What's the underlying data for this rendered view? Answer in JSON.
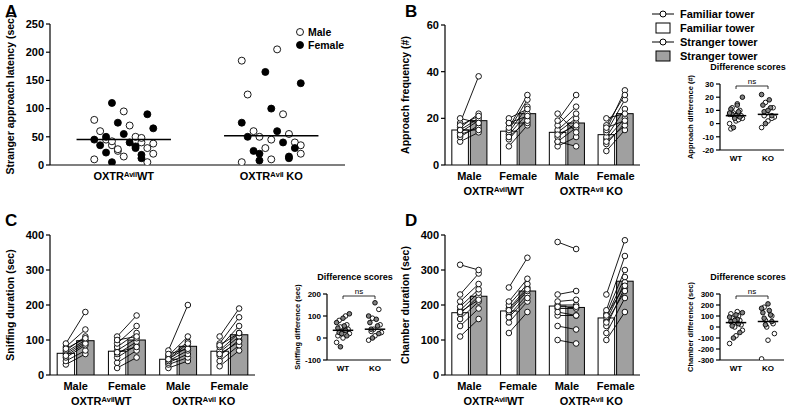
{
  "chart_data": [
    {
      "type": "scatter",
      "title": "A",
      "ylabel": "Stranger approach latency (sec)",
      "categories": [
        "OXTRᴬᵛⁱˡWT",
        "OXTRᴬᵛⁱˡ KO"
      ],
      "ylim": [
        0,
        250
      ],
      "yticks": [
        0,
        50,
        100,
        150,
        200,
        250
      ],
      "legend": "top-right",
      "series": [
        {
          "name": "Male",
          "color": "#ffffff",
          "marker": "circle",
          "values": [
            [
              10,
              15,
              20,
              25,
              30,
              35,
              40,
              45,
              50,
              60,
              70,
              80,
              95,
              38,
              28,
              5,
              42,
              48
            ],
            [
              5,
              10,
              20,
              30,
              40,
              50,
              55,
              60,
              90,
              125,
              205,
              185,
              45,
              35
            ]
          ]
        },
        {
          "name": "Female",
          "color": "#000000",
          "marker": "circle",
          "values": [
            [
              5,
              12,
              22,
              30,
              35,
              40,
              45,
              55,
              65,
              75,
              90,
              110,
              18,
              50,
              33
            ],
            [
              8,
              15,
              25,
              40,
              50,
              60,
              75,
              100,
              145,
              165,
              30,
              20,
              12
            ]
          ]
        }
      ],
      "median": [
        45,
        52
      ]
    },
    {
      "type": "bar",
      "title": "B",
      "ylabel": "Approach frequency (#)",
      "categories": [
        "Male",
        "Female",
        "Male",
        "Female"
      ],
      "group_labels": [
        "OXTRᴬᵛⁱˡWT",
        "OXTRᴬᵛⁱˡ KO"
      ],
      "ylim": [
        0,
        60
      ],
      "yticks": [
        0,
        20,
        40,
        60
      ],
      "legend": "right",
      "series": [
        {
          "name": "Familiar tower",
          "type": "line",
          "marker": "open-circle",
          "color": "#000000",
          "values": [
            [
              10,
              12,
              14,
              15,
              16,
              18,
              13,
              20,
              17,
              15
            ],
            [
              8,
              11,
              13,
              14,
              15,
              16,
              18,
              20,
              12,
              18
            ],
            [
              8,
              10,
              12,
              14,
              15,
              17,
              19,
              22,
              13,
              10
            ],
            [
              6,
              9,
              11,
              12,
              14,
              15,
              17,
              20,
              10,
              16
            ]
          ]
        },
        {
          "name": "Familiar tower",
          "type": "bar",
          "color": "#ffffff",
          "values": [
            15,
            14.5,
            14,
            13
          ]
        },
        {
          "name": "Stranger tower",
          "type": "line",
          "marker": "open-circle",
          "color": "#000000",
          "values": [
            [
              14,
              17,
              19,
              20,
              22,
              38,
              16,
              18,
              21,
              15
            ],
            [
              17,
              20,
              22,
              25,
              28,
              30,
              18,
              24,
              19,
              21
            ],
            [
              12,
              16,
              18,
              20,
              22,
              25,
              30,
              14,
              17,
              8
            ],
            [
              15,
              18,
              20,
              24,
              28,
              32,
              30,
              22,
              17,
              19
            ]
          ]
        },
        {
          "name": "Stranger tower",
          "type": "bar",
          "color": "#a0a0a0",
          "values": [
            19,
            22,
            18,
            22
          ]
        }
      ]
    },
    {
      "type": "scatter",
      "title": "Difference scores",
      "ylabel": "Approach difference (#)",
      "categories": [
        "WT",
        "KO"
      ],
      "ylim": [
        -20,
        30
      ],
      "yticks": [
        -20,
        -10,
        0,
        10,
        20,
        30
      ],
      "annotation": "ns",
      "series": [
        {
          "name": "Male",
          "color": "#ffffff",
          "marker": "circle",
          "values": [
            [
              0,
              2,
              4,
              5,
              6,
              8,
              10,
              12,
              3,
              -4,
              15,
              7
            ],
            [
              -3,
              2,
              5,
              8,
              12,
              16,
              4,
              6
            ]
          ]
        },
        {
          "name": "Female",
          "color": "#808080",
          "marker": "circle",
          "values": [
            [
              -3,
              5,
              7,
              9,
              11,
              14,
              8,
              6,
              20,
              4
            ],
            [
              0,
              6,
              9,
              12,
              14,
              18,
              22,
              10
            ]
          ]
        }
      ],
      "median": [
        6,
        7
      ]
    },
    {
      "type": "bar",
      "title": "C",
      "ylabel": "Sniffing duration (sec)",
      "categories": [
        "Male",
        "Female",
        "Male",
        "Female"
      ],
      "group_labels": [
        "OXTRᴬᵛⁱˡWT",
        "OXTRᴬᵛⁱˡ KO"
      ],
      "ylim": [
        0,
        400
      ],
      "yticks": [
        0,
        100,
        200,
        300,
        400
      ],
      "series": [
        {
          "name": "Familiar tower",
          "type": "line",
          "marker": "open-circle",
          "color": "#000000",
          "values": [
            [
              30,
              40,
              50,
              60,
              65,
              70,
              80,
              90,
              55,
              75
            ],
            [
              20,
              35,
              50,
              60,
              70,
              80,
              90,
              110,
              65,
              100
            ],
            [
              20,
              30,
              35,
              40,
              45,
              50,
              55,
              70,
              60,
              45
            ],
            [
              25,
              40,
              55,
              65,
              70,
              80,
              90,
              110,
              60,
              85
            ]
          ]
        },
        {
          "name": "Familiar tower",
          "type": "bar",
          "color": "#ffffff",
          "values": [
            62,
            68,
            45,
            68
          ]
        },
        {
          "name": "Stranger tower",
          "type": "line",
          "marker": "open-circle",
          "color": "#000000",
          "values": [
            [
              60,
              70,
              85,
              95,
              100,
              110,
              130,
              180,
              90,
              105
            ],
            [
              50,
              70,
              85,
              95,
              105,
              120,
              140,
              170,
              80,
              110
            ],
            [
              40,
              50,
              60,
              70,
              80,
              95,
              110,
              200,
              75,
              90
            ],
            [
              70,
              85,
              100,
              110,
              120,
              140,
              165,
              190,
              95,
              120
            ]
          ]
        },
        {
          "name": "Stranger tower",
          "type": "bar",
          "color": "#a0a0a0",
          "values": [
            98,
            100,
            82,
            115
          ]
        }
      ]
    },
    {
      "type": "scatter",
      "title": "Difference scores",
      "ylabel": "Sniffing difference (sec)",
      "categories": [
        "WT",
        "KO"
      ],
      "ylim": [
        -100,
        200
      ],
      "yticks": [
        -100,
        0,
        100,
        200
      ],
      "annotation": "ns",
      "series": [
        {
          "name": "Male",
          "color": "#ffffff",
          "marker": "circle",
          "values": [
            [
              -20,
              0,
              20,
              30,
              40,
              50,
              60,
              80,
              100,
              10,
              35
            ],
            [
              -10,
              10,
              25,
              40,
              60,
              90,
              130,
              30
            ]
          ]
        },
        {
          "name": "Female",
          "color": "#808080",
          "marker": "circle",
          "values": [
            [
              -40,
              10,
              25,
              35,
              45,
              55,
              70,
              90,
              110,
              20
            ],
            [
              0,
              20,
              40,
              55,
              70,
              85,
              100,
              160
            ]
          ]
        }
      ],
      "median": [
        35,
        40
      ]
    },
    {
      "type": "bar",
      "title": "D",
      "ylabel": "Chamber duration (sec)",
      "categories": [
        "Male",
        "Female",
        "Male",
        "Female"
      ],
      "group_labels": [
        "OXTRᴬᵛⁱˡWT",
        "OXTRᴬᵛⁱˡ KO"
      ],
      "ylim": [
        0,
        400
      ],
      "yticks": [
        0,
        100,
        200,
        300,
        400
      ],
      "series": [
        {
          "name": "Familiar tower",
          "type": "line",
          "marker": "open-circle",
          "color": "#000000",
          "values": [
            [
              110,
              140,
              160,
              175,
              185,
              195,
              210,
              230,
              315,
              180
            ],
            [
              120,
              150,
              170,
              180,
              190,
              200,
              210,
              250,
              165,
              185
            ],
            [
              100,
              140,
              170,
              190,
              200,
              210,
              230,
              380,
              180,
              195
            ],
            [
              100,
              120,
              140,
              155,
              165,
              175,
              185,
              230,
              150,
              170
            ]
          ]
        },
        {
          "name": "Familiar tower",
          "type": "bar",
          "color": "#ffffff",
          "values": [
            178,
            183,
            197,
            163
          ]
        },
        {
          "name": "Stranger tower",
          "type": "line",
          "marker": "open-circle",
          "color": "#000000",
          "values": [
            [
              160,
              190,
              210,
              225,
              235,
              245,
              260,
              290,
              300,
              215
            ],
            [
              180,
              210,
              230,
              240,
              250,
              260,
              275,
              335,
              220,
              245
            ],
            [
              90,
              130,
              170,
              190,
              200,
              215,
              240,
              360,
              170,
              195
            ],
            [
              180,
              220,
              250,
              265,
              280,
              300,
              340,
              385,
              240,
              255
            ]
          ]
        },
        {
          "name": "Stranger tower",
          "type": "bar",
          "color": "#a0a0a0",
          "values": [
            225,
            240,
            193,
            268
          ]
        }
      ]
    },
    {
      "type": "scatter",
      "title": "Difference scores",
      "ylabel": "Chamber difference (sec)",
      "categories": [
        "WT",
        "KO"
      ],
      "ylim": [
        -300,
        300
      ],
      "yticks": [
        -300,
        -200,
        -100,
        0,
        100,
        200,
        300
      ],
      "annotation": "ns",
      "series": [
        {
          "name": "Male",
          "color": "#ffffff",
          "marker": "circle",
          "values": [
            [
              -150,
              -80,
              -30,
              0,
              20,
              40,
              60,
              80,
              100,
              120,
              140
            ],
            [
              -290,
              -120,
              -60,
              0,
              30,
              60,
              100,
              180
            ]
          ]
        },
        {
          "name": "Female",
          "color": "#808080",
          "marker": "circle",
          "values": [
            [
              -100,
              -50,
              10,
              30,
              50,
              70,
              90,
              110,
              130,
              60
            ],
            [
              20,
              50,
              80,
              110,
              130,
              150,
              170,
              210
            ]
          ]
        }
      ],
      "median": [
        40,
        50
      ]
    }
  ]
}
